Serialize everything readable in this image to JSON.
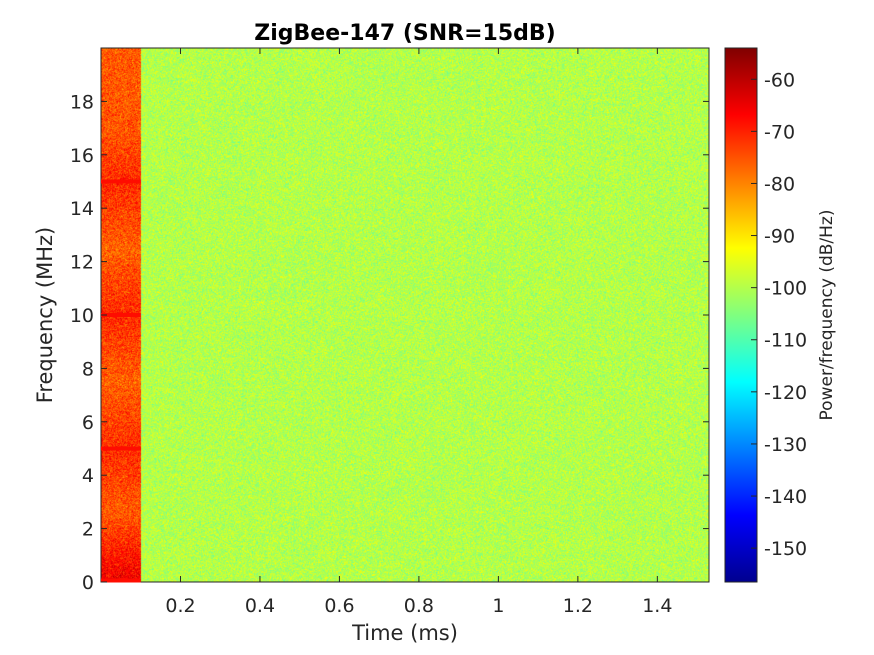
{
  "chart_data": {
    "type": "heatmap",
    "title": "ZigBee-147 (SNR=15dB)",
    "xlabel": "Time (ms)",
    "ylabel": "Frequency (MHz)",
    "colorbar_label": "Power/frequency (dB/Hz)",
    "colormap": "jet",
    "xlim": [
      0,
      1.53
    ],
    "ylim": [
      0,
      20
    ],
    "clim": [
      -156.5,
      -54
    ],
    "x_ticks": [
      0.2,
      0.4,
      0.6,
      0.8,
      1,
      1.2,
      1.4
    ],
    "x_tick_labels": [
      "0.2",
      "0.4",
      "0.6",
      "0.8",
      "1",
      "1.2",
      "1.4"
    ],
    "y_ticks": [
      0,
      2,
      4,
      6,
      8,
      10,
      12,
      14,
      16,
      18
    ],
    "y_tick_labels": [
      "0",
      "2",
      "4",
      "6",
      "8",
      "10",
      "12",
      "14",
      "16",
      "18"
    ],
    "colorbar_ticks": [
      -60,
      -70,
      -80,
      -90,
      -100,
      -110,
      -120,
      -130,
      -140,
      -150
    ],
    "colorbar_tick_labels": [
      "-60",
      "-70",
      "-80",
      "-90",
      "-100",
      "-110",
      "-120",
      "-130",
      "-140",
      "-150"
    ],
    "regions": [
      {
        "label": "burst",
        "t_start": 0,
        "t_end": 0.1,
        "power_db": -75
      },
      {
        "label": "noise floor",
        "t_start": 0.1,
        "t_end": 1.53,
        "power_db": -100
      }
    ],
    "tones_mhz": [
      0,
      5,
      10,
      15
    ],
    "tone_power_db": -60
  }
}
